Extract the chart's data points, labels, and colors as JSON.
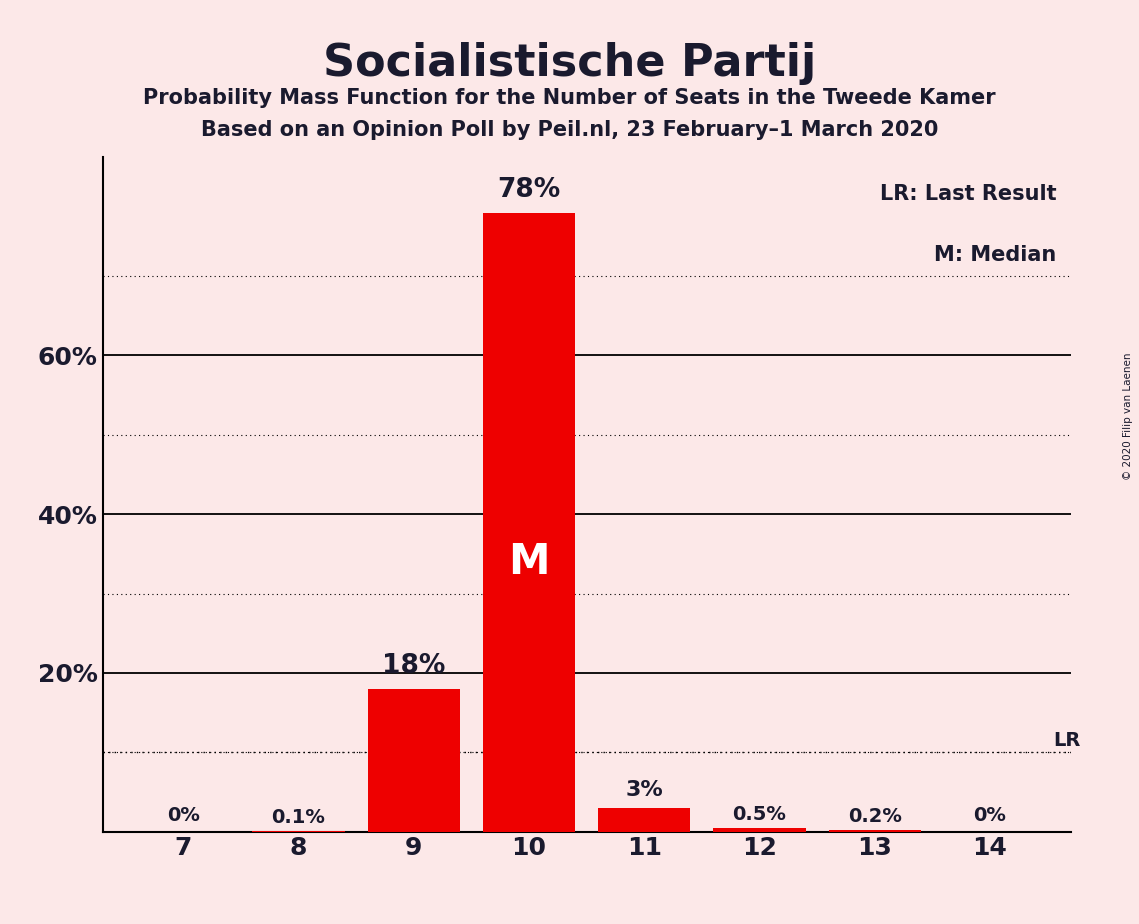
{
  "title": "Socialistische Partij",
  "subtitle1": "Probability Mass Function for the Number of Seats in the Tweede Kamer",
  "subtitle2": "Based on an Opinion Poll by Peil.nl, 23 February–1 March 2020",
  "copyright": "© 2020 Filip van Laenen",
  "seats": [
    7,
    8,
    9,
    10,
    11,
    12,
    13,
    14
  ],
  "probabilities": [
    0.0,
    0.1,
    18.0,
    78.0,
    3.0,
    0.5,
    0.2,
    0.0
  ],
  "bar_color": "#ee0000",
  "background_color": "#fce8e8",
  "median_seat": 10,
  "last_result_value": 10.0,
  "bar_labels": [
    "0%",
    "0.1%",
    "18%",
    "78%",
    "3%",
    "0.5%",
    "0.2%",
    "0%"
  ],
  "legend_lr": "LR: Last Result",
  "legend_m": "M: Median",
  "ylim": [
    0,
    85
  ],
  "solid_yticks": [
    20,
    40,
    60
  ],
  "dotted_yticks": [
    10,
    30,
    50,
    70
  ],
  "ylabel_ticks": [
    20,
    40,
    60
  ],
  "title_fontsize": 32,
  "subtitle_fontsize": 15,
  "tick_fontsize": 18,
  "label_fontsize": 15
}
